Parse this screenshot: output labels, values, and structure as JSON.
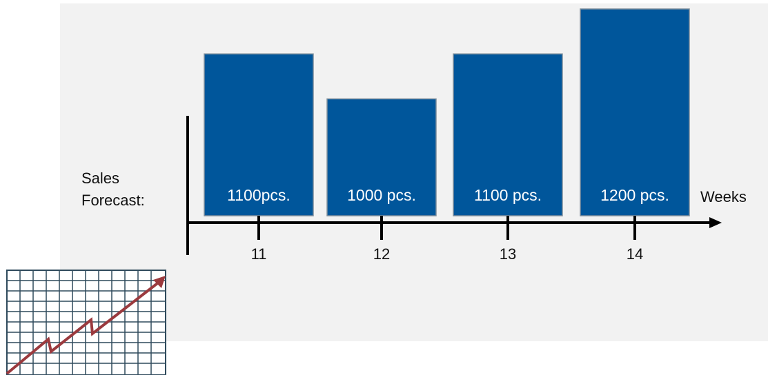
{
  "chart_data": {
    "type": "bar",
    "x_label": "Weeks",
    "y_label": [
      "Sales",
      "Forecast:"
    ],
    "categories": [
      "11",
      "12",
      "13",
      "14"
    ],
    "values": [
      1100,
      1000,
      1100,
      1200
    ],
    "value_labels": [
      "1100pcs.",
      "1000 pcs.",
      "1100 pcs.",
      "1200 pcs."
    ],
    "color": "#00569b",
    "ylim": [
      740,
      1200
    ]
  }
}
